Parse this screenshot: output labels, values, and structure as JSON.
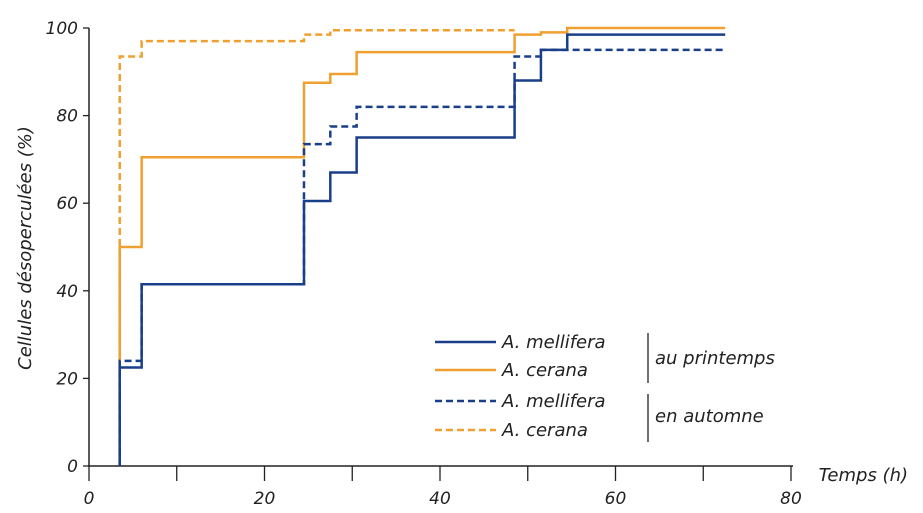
{
  "chart_data": {
    "type": "line",
    "step": true,
    "xlabel": "Temps (h)",
    "ylabel": "Cellules désoperculées (%)",
    "xlim": [
      0,
      80
    ],
    "ylim": [
      0,
      100
    ],
    "xticks": [
      0,
      20,
      40,
      60,
      80
    ],
    "yticks": [
      0,
      20,
      40,
      60,
      80,
      100
    ],
    "xtick_labels": [
      "0",
      "20",
      "40",
      "60",
      "80"
    ],
    "ytick_labels": [
      "0",
      "20",
      "40",
      "60",
      "80",
      "100"
    ],
    "grid": false,
    "legend_position": "bottom-right",
    "groups": [
      {
        "label": "au printemps",
        "series": [
          0,
          1
        ]
      },
      {
        "label": "en automne",
        "series": [
          2,
          3
        ]
      }
    ],
    "series": [
      {
        "name": "A. mellifera",
        "season": "au printemps",
        "color": "#1a3f8a",
        "dash": "solid",
        "x": [
          3.5,
          6,
          24.5,
          27.5,
          30.5,
          48.5,
          51.5,
          54.5,
          72.5
        ],
        "y": [
          22.5,
          41.5,
          60.5,
          67,
          75,
          88,
          95,
          98.5,
          98.5
        ]
      },
      {
        "name": "A. cerana",
        "season": "au printemps",
        "color": "#f0a030",
        "dash": "solid",
        "x": [
          3.5,
          6,
          24.5,
          27.5,
          30.5,
          48.5,
          51.5,
          54.5,
          72.5
        ],
        "y": [
          50,
          70.5,
          87.5,
          89.5,
          94.5,
          98.5,
          99,
          100,
          100
        ]
      },
      {
        "name": "A. mellifera",
        "season": "en automne",
        "color": "#1a3f8a",
        "dash": "dashed",
        "x": [
          3.5,
          6,
          24.5,
          27.5,
          30.5,
          48.5,
          51.5,
          72.5
        ],
        "y": [
          24,
          41.5,
          73.5,
          77.5,
          82,
          93.5,
          95,
          95
        ]
      },
      {
        "name": "A. cerana",
        "season": "en automne",
        "color": "#f0a030",
        "dash": "dashed",
        "x": [
          3.5,
          6,
          24.5,
          27.5,
          48.5
        ],
        "y": [
          93.5,
          97,
          98.5,
          99.5,
          99.5
        ]
      }
    ]
  }
}
